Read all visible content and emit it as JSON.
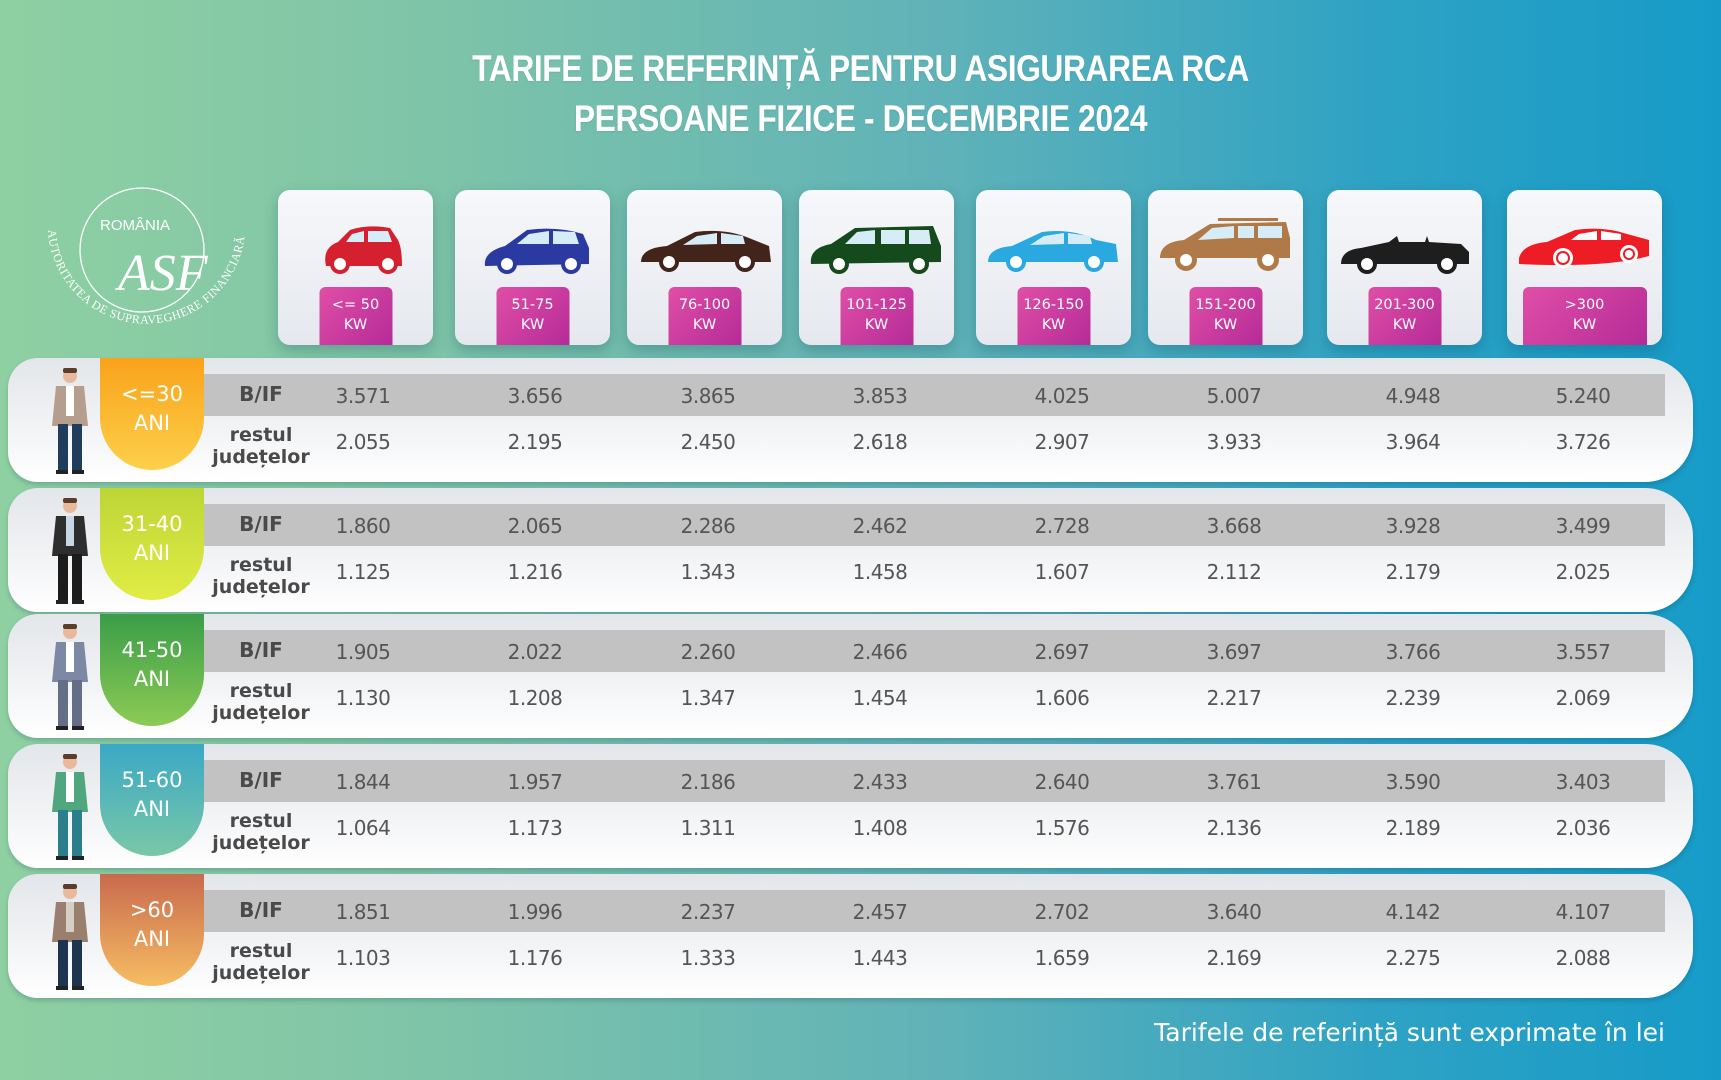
{
  "title": {
    "line1": "TARIFE DE REFERINȚĂ PENTRU ASIGURAREA RCA",
    "line2": "PERSOANE FIZICE - DECEMBRIE 2024"
  },
  "logo": {
    "country": "ROMÂNIA",
    "monogram": "ASF",
    "arc_text": "AUTORITATEA DE SUPRAVEGHERE FINANCIARĂ"
  },
  "categories": [
    {
      "range": "<= 50",
      "unit": "KW",
      "car_icon": "hatchback-car-icon",
      "color": "#d4202f"
    },
    {
      "range": "51-75",
      "unit": "KW",
      "car_icon": "compact-suv-car-icon",
      "color": "#2a3aa0"
    },
    {
      "range": "76-100",
      "unit": "KW",
      "car_icon": "sedan-car-icon",
      "color": "#43241a"
    },
    {
      "range": "101-125",
      "unit": "KW",
      "car_icon": "minivan-car-icon",
      "color": "#154a1c"
    },
    {
      "range": "126-150",
      "unit": "KW",
      "car_icon": "sedan-car-icon",
      "color": "#2aa9e1"
    },
    {
      "range": "151-200",
      "unit": "KW",
      "car_icon": "suv-car-icon",
      "color": "#b07a48"
    },
    {
      "range": "201-300",
      "unit": "KW",
      "car_icon": "convertible-car-icon",
      "color": "#1e1e1e"
    },
    {
      "range": ">300",
      "unit": "KW",
      "car_icon": "sports-car-icon",
      "color": "#ee1c24"
    }
  ],
  "row_labels": {
    "bif": "B/IF",
    "rest_line1": "restul",
    "rest_line2": "județelor"
  },
  "age_groups": [
    {
      "label1": "<=30",
      "label2": "ANI",
      "tab_color_top": "#f9a21b",
      "tab_color_bottom": "#fdd04a",
      "bif": [
        "3.571",
        "3.656",
        "3.865",
        "3.853",
        "4.025",
        "5.007",
        "4.948",
        "5.240"
      ],
      "rest": [
        "2.055",
        "2.195",
        "2.450",
        "2.618",
        "2.907",
        "3.933",
        "3.964",
        "3.726"
      ]
    },
    {
      "label1": "31-40",
      "label2": "ANI",
      "tab_color_top": "#bcd636",
      "tab_color_bottom": "#e2ec45",
      "bif": [
        "1.860",
        "2.065",
        "2.286",
        "2.462",
        "2.728",
        "3.668",
        "3.928",
        "3.499"
      ],
      "rest": [
        "1.125",
        "1.216",
        "1.343",
        "1.458",
        "1.607",
        "2.112",
        "2.179",
        "2.025"
      ]
    },
    {
      "label1": "41-50",
      "label2": "ANI",
      "tab_color_top": "#3a9d48",
      "tab_color_bottom": "#8ccb55",
      "bif": [
        "1.905",
        "2.022",
        "2.260",
        "2.466",
        "2.697",
        "3.697",
        "3.766",
        "3.557"
      ],
      "rest": [
        "1.130",
        "1.208",
        "1.347",
        "1.454",
        "1.606",
        "2.217",
        "2.239",
        "2.069"
      ]
    },
    {
      "label1": "51-60",
      "label2": "ANI",
      "tab_color_top": "#3aa8c6",
      "tab_color_bottom": "#79c8a6",
      "bif": [
        "1.844",
        "1.957",
        "2.186",
        "2.433",
        "2.640",
        "3.761",
        "3.590",
        "3.403"
      ],
      "rest": [
        "1.064",
        "1.173",
        "1.311",
        "1.408",
        "1.576",
        "2.136",
        "2.189",
        "2.036"
      ]
    },
    {
      "label1": ">60",
      "label2": "ANI",
      "tab_color_top": "#c96a4e",
      "tab_color_bottom": "#f6bd62",
      "bif": [
        "1.851",
        "1.996",
        "2.237",
        "2.457",
        "2.702",
        "3.640",
        "4.142",
        "4.107"
      ],
      "rest": [
        "1.103",
        "1.176",
        "1.333",
        "1.443",
        "1.659",
        "2.169",
        "2.275",
        "2.088"
      ]
    }
  ],
  "footnote": "Tarifele de referință sunt exprimate în lei",
  "chart_data": {
    "type": "table",
    "title": "TARIFE DE REFERINȚĂ PENTRU ASIGURAREA RCA - PERSOANE FIZICE - DECEMBRIE 2024",
    "unit": "lei",
    "columns": [
      "<= 50 KW",
      "51-75 KW",
      "76-100 KW",
      "101-125 KW",
      "126-150 KW",
      "151-200 KW",
      "201-300 KW",
      ">300 KW"
    ],
    "rows": [
      {
        "age": "<=30 ANI",
        "region": "B/IF",
        "values": [
          3571,
          3656,
          3865,
          3853,
          4025,
          5007,
          4948,
          5240
        ]
      },
      {
        "age": "<=30 ANI",
        "region": "restul județelor",
        "values": [
          2055,
          2195,
          2450,
          2618,
          2907,
          3933,
          3964,
          3726
        ]
      },
      {
        "age": "31-40 ANI",
        "region": "B/IF",
        "values": [
          1860,
          2065,
          2286,
          2462,
          2728,
          3668,
          3928,
          3499
        ]
      },
      {
        "age": "31-40 ANI",
        "region": "restul județelor",
        "values": [
          1125,
          1216,
          1343,
          1458,
          1607,
          2112,
          2179,
          2025
        ]
      },
      {
        "age": "41-50 ANI",
        "region": "B/IF",
        "values": [
          1905,
          2022,
          2260,
          2466,
          2697,
          3697,
          3766,
          3557
        ]
      },
      {
        "age": "41-50 ANI",
        "region": "restul județelor",
        "values": [
          1130,
          1208,
          1347,
          1454,
          1606,
          2217,
          2239,
          2069
        ]
      },
      {
        "age": "51-60 ANI",
        "region": "B/IF",
        "values": [
          1844,
          1957,
          2186,
          2433,
          2640,
          3761,
          3590,
          3403
        ]
      },
      {
        "age": "51-60 ANI",
        "region": "restul județelor",
        "values": [
          1064,
          1173,
          1311,
          1408,
          1576,
          2136,
          2189,
          2036
        ]
      },
      {
        "age": ">60 ANI",
        "region": "B/IF",
        "values": [
          1851,
          1996,
          2237,
          2457,
          2702,
          3640,
          4142,
          4107
        ]
      },
      {
        "age": ">60 ANI",
        "region": "restul județelor",
        "values": [
          1103,
          1176,
          1333,
          1443,
          1659,
          2169,
          2275,
          2088
        ]
      }
    ]
  }
}
